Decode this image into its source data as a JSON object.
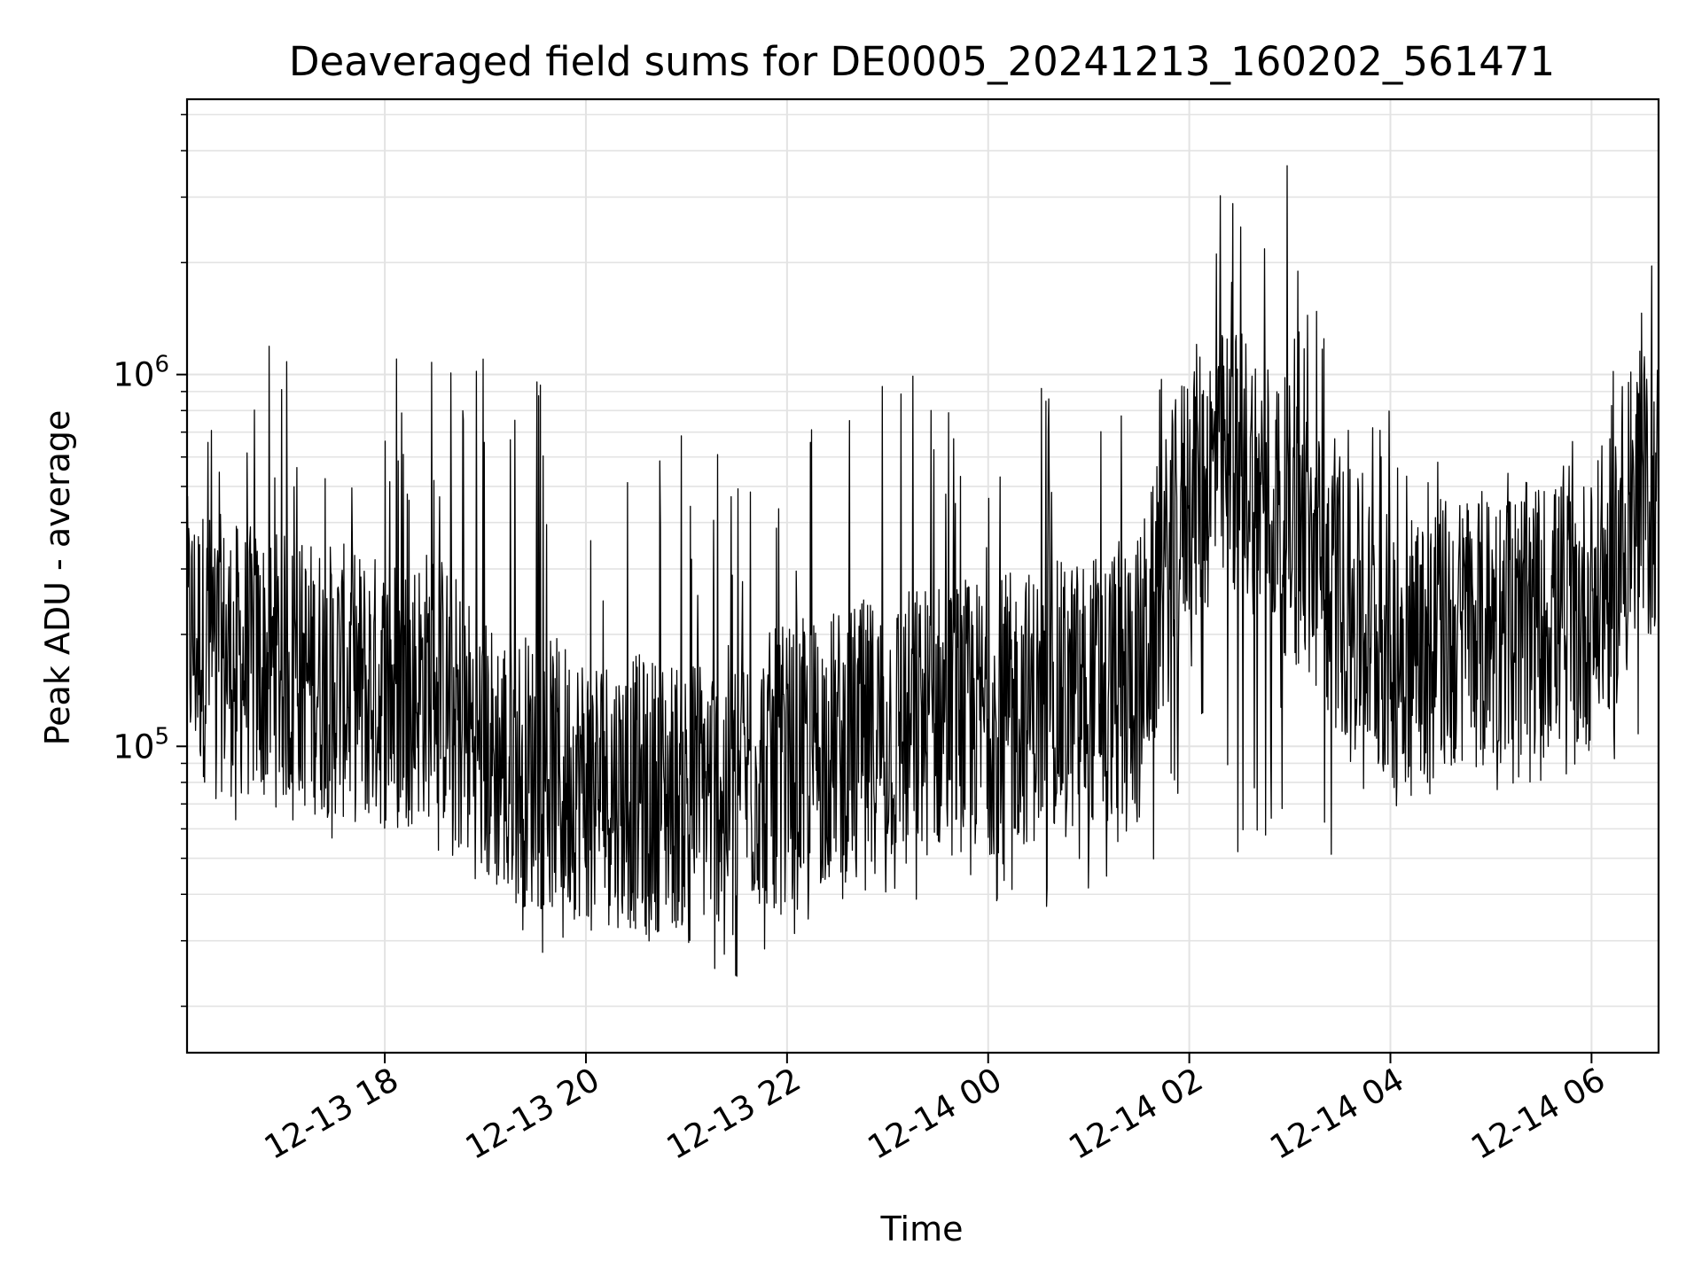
{
  "chart_data": {
    "type": "line",
    "title": "Deaveraged field sums for DE0005_20241213_160202_561471",
    "xlabel": "Time",
    "ylabel": "Peak ADU - average",
    "ylabel_parts": {
      "base": "Peak ADU - average"
    },
    "yscale": "log",
    "grid": true,
    "ylim": [
      15000,
      5500000
    ],
    "xlim": [
      "2024-12-13 16:02",
      "2024-12-14 06:40"
    ],
    "x_ticks": [
      {
        "time": "2024-12-13 18:00",
        "label": "12-13 18"
      },
      {
        "time": "2024-12-13 20:00",
        "label": "12-13 20"
      },
      {
        "time": "2024-12-13 22:00",
        "label": "12-13 22"
      },
      {
        "time": "2024-12-14 00:00",
        "label": "12-14 00"
      },
      {
        "time": "2024-12-14 02:00",
        "label": "12-14 02"
      },
      {
        "time": "2024-12-14 04:00",
        "label": "12-14 04"
      },
      {
        "time": "2024-12-14 06:00",
        "label": "12-14 06"
      }
    ],
    "y_ticks": [
      {
        "value": 100000,
        "base": "10",
        "exp": "5"
      },
      {
        "value": 1000000,
        "base": "10",
        "exp": "6"
      }
    ],
    "series": [
      {
        "color": "#000000",
        "x": [
          "2024-12-13 16:02",
          "2024-12-13 16:30",
          "2024-12-13 17:00",
          "2024-12-13 17:30",
          "2024-12-13 18:00",
          "2024-12-13 18:30",
          "2024-12-13 19:00",
          "2024-12-13 19:30",
          "2024-12-13 20:00",
          "2024-12-13 20:30",
          "2024-12-13 21:00",
          "2024-12-13 21:30",
          "2024-12-13 22:00",
          "2024-12-13 22:30",
          "2024-12-13 23:00",
          "2024-12-13 23:30",
          "2024-12-14 00:00",
          "2024-12-14 00:30",
          "2024-12-14 01:00",
          "2024-12-14 01:30",
          "2024-12-14 02:00",
          "2024-12-14 02:30",
          "2024-12-14 03:00",
          "2024-12-14 03:30",
          "2024-12-14 04:00",
          "2024-12-14 04:30",
          "2024-12-14 05:00",
          "2024-12-14 05:30",
          "2024-12-14 06:00",
          "2024-12-14 06:40"
        ],
        "y_typical": [
          200000,
          170000,
          160000,
          150000,
          140000,
          150000,
          95000,
          85000,
          80000,
          75000,
          75000,
          80000,
          90000,
          100000,
          110000,
          120000,
          120000,
          130000,
          140000,
          160000,
          500000,
          600000,
          400000,
          250000,
          180000,
          200000,
          210000,
          220000,
          230000,
          500000
        ],
        "y_low": [
          90000,
          60000,
          55000,
          50000,
          60000,
          50000,
          40000,
          28000,
          22000,
          28000,
          22000,
          22000,
          30000,
          35000,
          35000,
          30000,
          32000,
          35000,
          40000,
          45000,
          60000,
          50000,
          50000,
          50000,
          55000,
          60000,
          70000,
          80000,
          80000,
          120000
        ],
        "y_high": [
          900000,
          1000000,
          1300000,
          850000,
          1150000,
          1400000,
          1200000,
          1300000,
          800000,
          650000,
          700000,
          700000,
          800000,
          1000000,
          1100000,
          1100000,
          800000,
          1000000,
          1000000,
          1100000,
          4000000,
          4500000,
          4200000,
          1100000,
          850000,
          600000,
          600000,
          600000,
          700000,
          2300000
        ]
      }
    ]
  }
}
